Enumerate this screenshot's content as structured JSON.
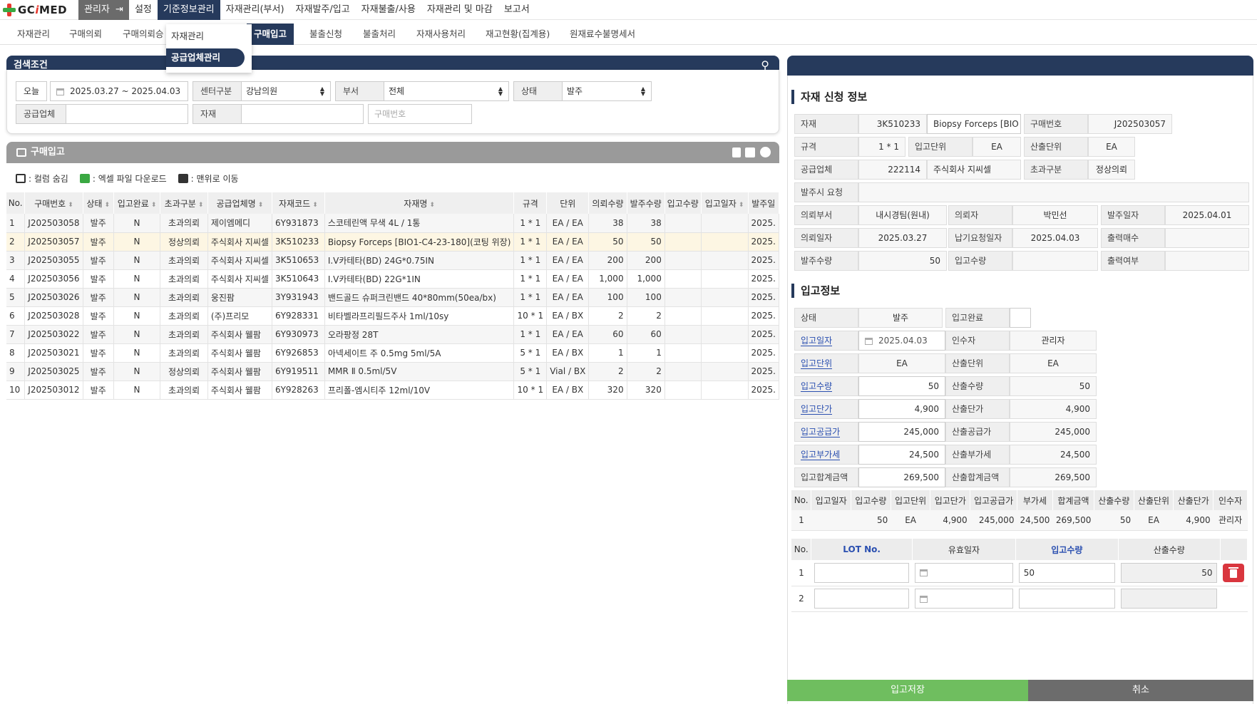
{
  "nav": {
    "logo_gc": "GC",
    "logo_i": "i",
    "logo_med": "MED",
    "admin": "관리자",
    "menus": [
      "설정",
      "기준정보관리",
      "자재관리(부서)",
      "자재발주/입고",
      "자재불출/사용",
      "자재관리 및 마감",
      "보고서"
    ]
  },
  "subnav": [
    "자재관리",
    "구매의뢰",
    "구매의뢰승",
    "구매입고",
    "불출신청",
    "불출처리",
    "자재사용처리",
    "재고현황(집계용)",
    "원재료수불명세서"
  ],
  "dropdown": [
    "자재관리",
    "공급업체관리"
  ],
  "search": {
    "title": "검색조건",
    "today": "오늘",
    "date_range": "2025.03.27 ~ 2025.04.03",
    "center_label": "센터구분",
    "center_value": "강남의원",
    "dept_label": "부서",
    "dept_value": "전체",
    "status_label": "상태",
    "status_value": "발주",
    "supplier_label": "공급업체",
    "material_label": "자재",
    "order_no_placeholder": "구매번호"
  },
  "list": {
    "title": "구매입고",
    "legend_hide": ": 컬럼 숨김",
    "legend_excel": ": 엑셀 파일 다운로드",
    "legend_top": ": 맨위로 이동",
    "columns": [
      "No.",
      "구매번호",
      "상태",
      "입고완료",
      "초과구분",
      "공급업체명",
      "자재코드",
      "자재명",
      "규격",
      "단위",
      "의뢰수량",
      "발주수량",
      "입고수량",
      "입고일자",
      "발주일"
    ],
    "rows": [
      [
        "1",
        "J202503058",
        "발주",
        "N",
        "초과의뢰",
        "제이엠메디",
        "6Y931873",
        "스코테린액 무색 4L / 1통",
        "1 * 1",
        "EA / EA",
        "38",
        "38",
        "",
        "",
        "2025."
      ],
      [
        "2",
        "J202503057",
        "발주",
        "N",
        "정상의뢰",
        "주식회사 지씨셀",
        "3K510233",
        "Biopsy Forceps [BIO1-C4-23-180](코팅 위장)",
        "1 * 1",
        "EA / EA",
        "50",
        "50",
        "",
        "",
        "2025."
      ],
      [
        "3",
        "J202503055",
        "발주",
        "N",
        "초과의뢰",
        "주식회사 지씨셀",
        "3K510653",
        "I.V카테타(BD) 24G*0.75IN",
        "1 * 1",
        "EA / EA",
        "200",
        "200",
        "",
        "",
        "2025."
      ],
      [
        "4",
        "J202503056",
        "발주",
        "N",
        "초과의뢰",
        "주식회사 지씨셀",
        "3K510643",
        "I.V카테타(BD) 22G*1IN",
        "1 * 1",
        "EA / EA",
        "1,000",
        "1,000",
        "",
        "",
        "2025."
      ],
      [
        "5",
        "J202503026",
        "발주",
        "N",
        "초과의뢰",
        "웅진팜",
        "3Y931943",
        "밴드골드 슈퍼크린밴드 40*80mm(50ea/bx)",
        "1 * 1",
        "EA / EA",
        "100",
        "100",
        "",
        "",
        "2025."
      ],
      [
        "6",
        "J202503028",
        "발주",
        "N",
        "초과의뢰",
        "(주)프리모",
        "6Y928331",
        "비타벨라프리필드주사 1ml/10sy",
        "10 * 1",
        "EA / BX",
        "2",
        "2",
        "",
        "",
        "2025."
      ],
      [
        "7",
        "J202503022",
        "발주",
        "N",
        "초과의뢰",
        "주식회사 웰팜",
        "6Y930973",
        "오라팡정 28T",
        "1 * 1",
        "EA / EA",
        "60",
        "60",
        "",
        "",
        "2025."
      ],
      [
        "8",
        "J202503021",
        "발주",
        "N",
        "초과의뢰",
        "주식회사 웰팜",
        "6Y926853",
        "아넥세이트 주 0.5mg 5ml/5A",
        "5 * 1",
        "EA / BX",
        "1",
        "1",
        "",
        "",
        "2025."
      ],
      [
        "9",
        "J202503025",
        "발주",
        "N",
        "정상의뢰",
        "주식회사 웰팜",
        "6Y919511",
        "MMR Ⅱ 0.5ml/5V",
        "5 * 1",
        "Vial / BX",
        "2",
        "2",
        "",
        "",
        "2025."
      ],
      [
        "10",
        "J202503012",
        "발주",
        "N",
        "초과의뢰",
        "주식회사 웰팜",
        "6Y928263",
        "프리폴-엠시티주 12ml/10V",
        "10 * 1",
        "EA / BX",
        "320",
        "320",
        "",
        "",
        "2025."
      ]
    ]
  },
  "detail": {
    "section1": "자재 신청 정보",
    "material_label": "자재",
    "material_code": "3K510233",
    "material_name": "Biopsy Forceps [BIO",
    "order_no_label": "구매번호",
    "order_no": "J202503057",
    "spec_label": "규격",
    "spec": "1 * 1",
    "in_unit_label": "입고단위",
    "in_unit": "EA",
    "out_unit_label": "산출단위",
    "out_unit": "EA",
    "supplier_label": "공급업체",
    "supplier_code": "222114",
    "supplier_name": "주식회사 지씨셀",
    "excess_label": "초과구분",
    "excess": "정상의뢰",
    "request_note_label": "발주시 요청",
    "req_dept_label": "의뢰부서",
    "req_dept": "내시경팀(원내)",
    "requester_label": "의뢰자",
    "requester": "박민선",
    "order_date_label": "발주일자",
    "order_date": "2025.04.01",
    "req_date_label": "의뢰일자",
    "req_date": "2025.03.27",
    "due_date_label": "납기요청일자",
    "due_date": "2025.04.03",
    "print_count_label": "출력매수",
    "order_qty_label": "발주수량",
    "order_qty": "50",
    "in_qty_label": "입고수량",
    "printed_label": "출력여부",
    "section2": "입고정보",
    "status_label": "상태",
    "status": "발주",
    "done_label": "입고완료",
    "in_date_label": "입고일자",
    "in_date": "2025.04.03",
    "receiver_label": "인수자",
    "receiver": "관리자",
    "in_unit2_label": "입고단위",
    "in_unit2": "EA",
    "out_unit2_label": "산출단위",
    "out_unit2": "EA",
    "in_qty2_label": "입고수량",
    "in_qty2": "50",
    "out_qty_label": "산출수량",
    "out_qty": "50",
    "in_price_label": "입고단가",
    "in_price": "4,900",
    "out_price_label": "산출단가",
    "out_price": "4,900",
    "in_supply_label": "입고공급가",
    "in_supply": "245,000",
    "out_supply_label": "산출공급가",
    "out_supply": "245,000",
    "in_vat_label": "입고부가세",
    "in_vat": "24,500",
    "out_vat_label": "산출부가세",
    "out_vat": "24,500",
    "in_total_label": "입고합계금액",
    "in_total": "269,500",
    "out_total_label": "산출합계금액",
    "out_total": "269,500"
  },
  "mini_table": {
    "columns": [
      "No.",
      "입고일자",
      "입고수량",
      "입고단위",
      "입고단가",
      "입고공급가",
      "부가세",
      "합계금액",
      "산출수량",
      "산출단위",
      "산출단가",
      "인수자"
    ],
    "row": [
      "1",
      "",
      "50",
      "EA",
      "4,900",
      "245,000",
      "24,500",
      "269,500",
      "50",
      "EA",
      "4,900",
      "관리자"
    ]
  },
  "lot_table": {
    "columns": [
      "No.",
      "LOT No.",
      "유효일자",
      "입고수량",
      "산출수량"
    ],
    "rows": [
      {
        "no": "1",
        "qty": "50",
        "out": "50"
      },
      {
        "no": "2",
        "qty": "",
        "out": ""
      }
    ]
  },
  "buttons": {
    "save": "입고저장",
    "cancel": "취소"
  }
}
